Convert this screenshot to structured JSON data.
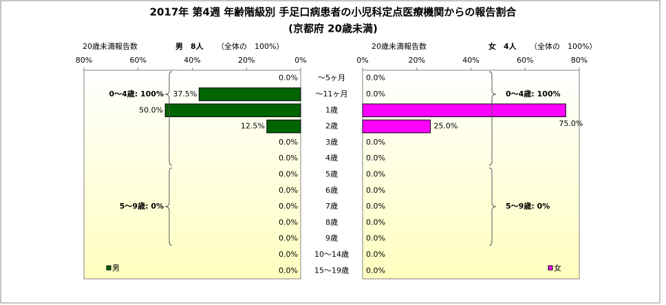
{
  "chart_data": {
    "type": "butterfly-bar",
    "title": "2017年 第4週 年齢階級別 手足口病患者の小児科定点医療機関からの報告割合",
    "subtitle": "(京都府 20歳未満)",
    "categories": [
      "～5ヶ月",
      "～11ヶ月",
      "1歳",
      "2歳",
      "3歳",
      "4歳",
      "5歳",
      "6歳",
      "7歳",
      "8歳",
      "9歳",
      "10～14歳",
      "15～19歳"
    ],
    "xlim": [
      0,
      80
    ],
    "xticks": [
      {
        "value": 80,
        "label": "80%"
      },
      {
        "value": 60,
        "label": "60%"
      },
      {
        "value": 40,
        "label": "40%"
      },
      {
        "value": 20,
        "label": "20%"
      },
      {
        "value": 0,
        "label": "0%"
      }
    ],
    "series": [
      {
        "name": "男",
        "color": "#006400",
        "side": "left",
        "header": [
          "20歳未満報告数",
          "男　8人",
          "（全体の　100%）"
        ],
        "annotations": [
          "0～4歳: 100%",
          "5～9歳: 0%"
        ],
        "values": [
          0,
          37.5,
          50,
          12.5,
          0,
          0,
          0,
          0,
          0,
          0,
          0,
          0,
          0
        ],
        "value_labels": [
          "0.0%",
          "37.5%",
          "50.0%",
          "12.5%",
          "0.0%",
          "0.0%",
          "0.0%",
          "0.0%",
          "0.0%",
          "0.0%",
          "0.0%",
          "0.0%",
          "0.0%"
        ]
      },
      {
        "name": "女",
        "color": "#ff00ff",
        "side": "right",
        "header": [
          "20歳未満報告数",
          "女　4人",
          "（全体の　100%）"
        ],
        "annotations": [
          "0～4歳: 100%",
          "5～9歳: 0%"
        ],
        "values": [
          0,
          0,
          75,
          25,
          0,
          0,
          0,
          0,
          0,
          0,
          0,
          0,
          0
        ],
        "value_labels": [
          "0.0%",
          "0.0%",
          "75.0%",
          "25.0%",
          "0.0%",
          "0.0%",
          "0.0%",
          "0.0%",
          "0.0%",
          "0.0%",
          "0.0%",
          "0.0%",
          "0.0%"
        ]
      }
    ]
  }
}
